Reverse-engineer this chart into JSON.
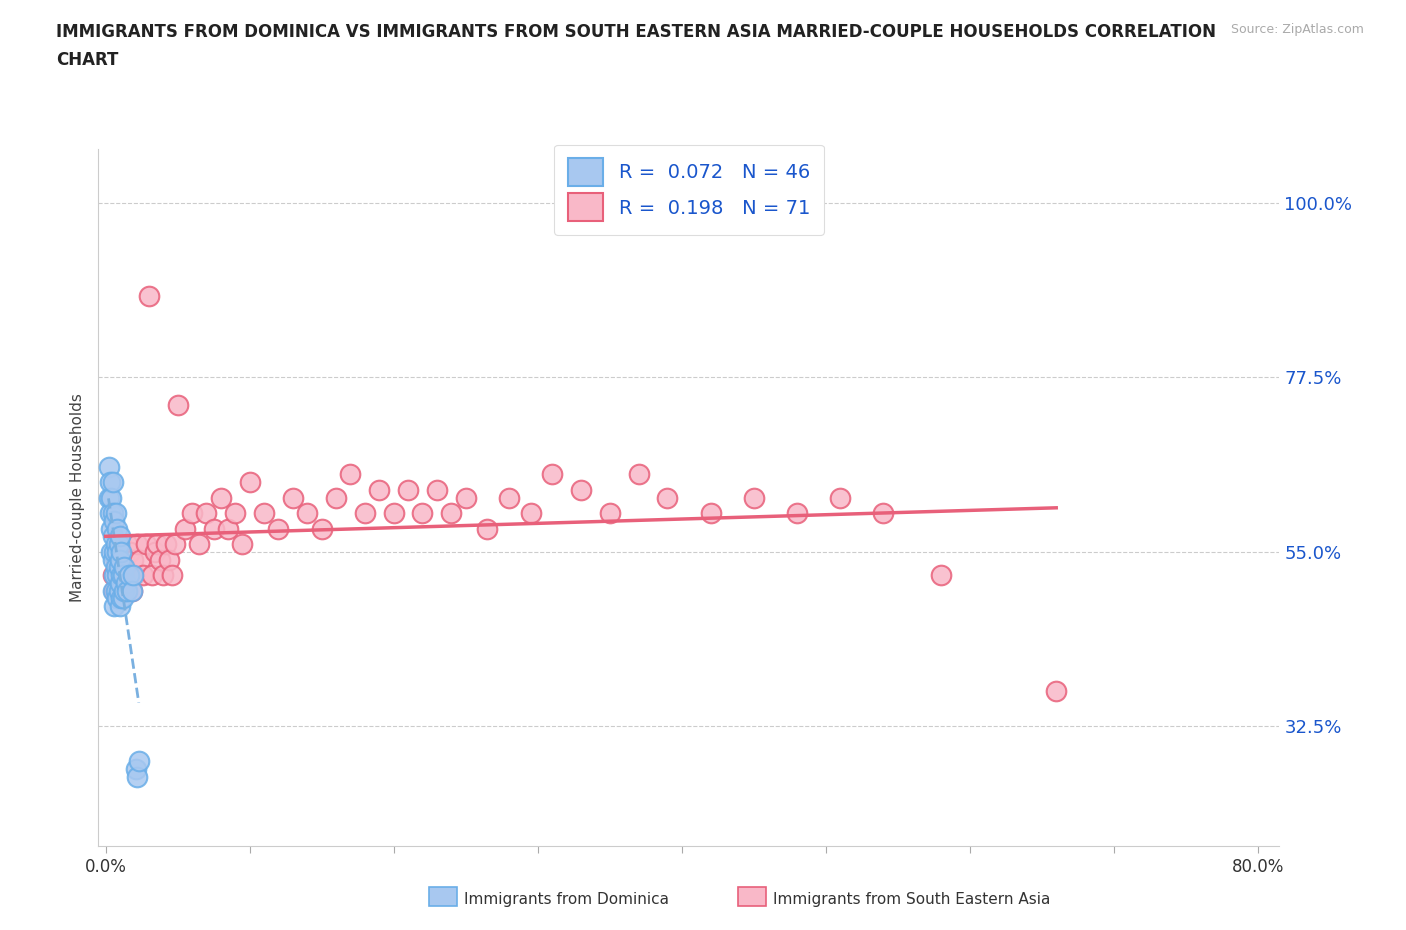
{
  "title_line1": "IMMIGRANTS FROM DOMINICA VS IMMIGRANTS FROM SOUTH EASTERN ASIA MARRIED-COUPLE HOUSEHOLDS CORRELATION",
  "title_line2": "CHART",
  "ylabel": "Married-couple Households",
  "source_text": "Source: ZipAtlas.com",
  "xmin": -0.005,
  "xmax": 0.815,
  "ymin": 0.17,
  "ymax": 1.07,
  "yticks": [
    0.325,
    0.55,
    0.775,
    1.0
  ],
  "ytick_labels": [
    "32.5%",
    "55.0%",
    "77.5%",
    "100.0%"
  ],
  "xticks": [
    0.0,
    0.1,
    0.2,
    0.3,
    0.4,
    0.5,
    0.6,
    0.7,
    0.8
  ],
  "r_dominica": 0.072,
  "n_dominica": 46,
  "r_sea": 0.198,
  "n_sea": 71,
  "color_dominica_fill": "#a8c8f0",
  "color_dominica_edge": "#6aaee8",
  "color_sea_fill": "#f9b8c8",
  "color_sea_edge": "#e8607a",
  "color_trend_dominica": "#7ab0e0",
  "color_trend_sea": "#e8607a",
  "color_rn_text": "#1a56cc",
  "legend_label_dominica": "Immigrants from Dominica",
  "legend_label_sea": "Immigrants from South Eastern Asia",
  "dominica_x": [
    0.002,
    0.002,
    0.003,
    0.003,
    0.004,
    0.004,
    0.004,
    0.005,
    0.005,
    0.005,
    0.005,
    0.005,
    0.006,
    0.006,
    0.006,
    0.006,
    0.007,
    0.007,
    0.007,
    0.007,
    0.008,
    0.008,
    0.008,
    0.008,
    0.009,
    0.009,
    0.009,
    0.01,
    0.01,
    0.01,
    0.01,
    0.011,
    0.011,
    0.011,
    0.012,
    0.012,
    0.013,
    0.013,
    0.014,
    0.015,
    0.016,
    0.018,
    0.019,
    0.021,
    0.022,
    0.023
  ],
  "dominica_y": [
    0.62,
    0.66,
    0.6,
    0.64,
    0.55,
    0.58,
    0.62,
    0.5,
    0.54,
    0.57,
    0.6,
    0.64,
    0.48,
    0.52,
    0.55,
    0.59,
    0.5,
    0.53,
    0.56,
    0.6,
    0.49,
    0.52,
    0.55,
    0.58,
    0.5,
    0.53,
    0.56,
    0.48,
    0.51,
    0.54,
    0.57,
    0.49,
    0.52,
    0.55,
    0.49,
    0.52,
    0.5,
    0.53,
    0.51,
    0.5,
    0.52,
    0.5,
    0.52,
    0.27,
    0.26,
    0.28
  ],
  "sea_x": [
    0.005,
    0.006,
    0.007,
    0.008,
    0.009,
    0.01,
    0.011,
    0.012,
    0.013,
    0.014,
    0.015,
    0.016,
    0.017,
    0.018,
    0.019,
    0.02,
    0.022,
    0.024,
    0.026,
    0.028,
    0.03,
    0.032,
    0.034,
    0.036,
    0.038,
    0.04,
    0.042,
    0.044,
    0.046,
    0.048,
    0.05,
    0.055,
    0.06,
    0.065,
    0.07,
    0.075,
    0.08,
    0.085,
    0.09,
    0.095,
    0.1,
    0.11,
    0.12,
    0.13,
    0.14,
    0.15,
    0.16,
    0.17,
    0.18,
    0.19,
    0.2,
    0.21,
    0.22,
    0.23,
    0.24,
    0.25,
    0.265,
    0.28,
    0.295,
    0.31,
    0.33,
    0.35,
    0.37,
    0.39,
    0.42,
    0.45,
    0.48,
    0.51,
    0.54,
    0.58,
    0.66
  ],
  "sea_y": [
    0.52,
    0.5,
    0.54,
    0.5,
    0.53,
    0.52,
    0.56,
    0.5,
    0.54,
    0.52,
    0.56,
    0.52,
    0.55,
    0.5,
    0.54,
    0.52,
    0.56,
    0.54,
    0.52,
    0.56,
    0.88,
    0.52,
    0.55,
    0.56,
    0.54,
    0.52,
    0.56,
    0.54,
    0.52,
    0.56,
    0.74,
    0.58,
    0.6,
    0.56,
    0.6,
    0.58,
    0.62,
    0.58,
    0.6,
    0.56,
    0.64,
    0.6,
    0.58,
    0.62,
    0.6,
    0.58,
    0.62,
    0.65,
    0.6,
    0.63,
    0.6,
    0.63,
    0.6,
    0.63,
    0.6,
    0.62,
    0.58,
    0.62,
    0.6,
    0.65,
    0.63,
    0.6,
    0.65,
    0.62,
    0.6,
    0.62,
    0.6,
    0.62,
    0.6,
    0.52,
    0.37
  ]
}
